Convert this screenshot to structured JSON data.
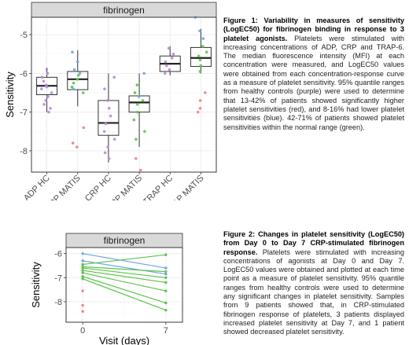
{
  "figure1": {
    "caption_title": "Figure 1: Variability in measures of sensitivity (LogEC50) for fibrinogen binding in response to 3 platelet agonists.",
    "caption_body": "Platelets were stimulated with increasing concentrations of ADP, CRP and TRAP-6. The median fluorescence intensity (MFI) at each concentration were measured, and LogEC50 values were obtained from each concentration-response curve as a measure of platelet sensitivity. 95% quantile ranges from healthy controls (purple) were used to determine that 13-42% of patients showed significantly higher platelet sensitivities (red), and 8-16% had lower platelet sensitivities (blue). 42-71% of patients showed platelet sensitivities within the normal range (green)."
  },
  "figure2": {
    "caption_title": "Figure 2: Changes in platelet sensitivity (LogEC50) from Day 0 to Day 7 CRP-stimulated fibrinogen response.",
    "caption_body": "Platelets were stimulated with increasing concentrations of agonists at Day 0 and Day 7. LogEC50 values were obtained and plotted at each time point as a measure of platelet sensitivity. 95% quantile ranges from healthy controls were used to determine any significant changes in platelet sensitivity. Samples from 9 patients showed that, in CRP-stimulated fibrinogen response of platelets, 3 patients displayed increased platelet sensitivity at Day 7, and 1 patient showed decreased platelet sensitivity."
  },
  "colors": {
    "hc_purple": "#b78ad8",
    "higher_red": "#f07f7f",
    "lower_blue": "#6fa8e0",
    "normal_green": "#5bc44a"
  },
  "chart_data": [
    {
      "type": "boxplot",
      "facet": "fibrinogen",
      "ylabel": "Sensitivity",
      "xlabel": "",
      "ylim": [
        -8.55,
        -4.55
      ],
      "yticks": [
        -8,
        -7,
        -6,
        -5
      ],
      "ytick_labels": [
        "-8",
        "-7",
        "-6",
        "-5"
      ],
      "categories": [
        "ADP HC",
        "ADP MATIS",
        "CRP HC",
        "CRP MATIS",
        "TRAP HC",
        "TRAP MATIS"
      ],
      "boxes": [
        {
          "q1": -6.55,
          "median": -6.32,
          "q3": -6.1,
          "lo": -7.0,
          "hi": -5.85
        },
        {
          "q1": -6.42,
          "median": -6.15,
          "q3": -5.95,
          "lo": -6.85,
          "hi": -5.4
        },
        {
          "q1": -7.6,
          "median": -7.28,
          "q3": -6.7,
          "lo": -8.3,
          "hi": -6.0
        },
        {
          "q1": -7.0,
          "median": -6.75,
          "q3": -6.58,
          "lo": -7.9,
          "hi": -6.0
        },
        {
          "q1": -5.95,
          "median": -5.75,
          "q3": -5.55,
          "lo": -6.05,
          "hi": -5.3
        },
        {
          "q1": -5.82,
          "median": -5.6,
          "q3": -5.33,
          "lo": -6.0,
          "hi": -4.85
        }
      ],
      "points": [
        {
          "cat": 0,
          "values": [
            -5.9,
            -6.0,
            -6.1,
            -6.2,
            -6.3,
            -6.35,
            -6.4,
            -6.5,
            -6.6,
            -6.7,
            -6.8,
            -6.9,
            -7.0
          ],
          "group": "hc"
        },
        {
          "cat": 1,
          "values": [
            -5.45,
            -5.7,
            -5.9,
            -6.0,
            -6.4
          ],
          "group": "lower"
        },
        {
          "cat": 1,
          "values": [
            -6.05,
            -6.15,
            -6.25,
            -6.35,
            -6.5
          ],
          "group": "normal"
        },
        {
          "cat": 1,
          "values": [
            -7.4,
            -7.8,
            -7.9
          ],
          "group": "higher"
        },
        {
          "cat": 2,
          "values": [
            -6.1,
            -6.4,
            -6.7,
            -6.9,
            -7.1,
            -7.3,
            -7.5,
            -7.7,
            -7.9,
            -8.05,
            -8.2
          ],
          "group": "hc"
        },
        {
          "cat": 3,
          "values": [
            -6.3,
            -6.5,
            -6.7,
            -6.8,
            -7.0,
            -7.2,
            -7.5,
            -7.7
          ],
          "group": "normal"
        },
        {
          "cat": 3,
          "values": [
            -6.0,
            -6.6
          ],
          "group": "lower"
        },
        {
          "cat": 3,
          "values": [
            -8.2,
            -8.5
          ],
          "group": "higher"
        },
        {
          "cat": 4,
          "values": [
            -5.35,
            -5.5,
            -5.6,
            -5.7,
            -5.8,
            -5.9,
            -6.0
          ],
          "group": "hc"
        },
        {
          "cat": 5,
          "values": [
            -4.55,
            -4.9,
            -5.1
          ],
          "group": "lower"
        },
        {
          "cat": 5,
          "values": [
            -5.3,
            -5.45,
            -5.55,
            -5.65,
            -5.8,
            -5.95
          ],
          "group": "normal"
        },
        {
          "cat": 5,
          "values": [
            -6.5,
            -6.7,
            -6.9,
            -7.0
          ],
          "group": "higher"
        }
      ]
    },
    {
      "type": "line",
      "facet": "fibrinogen",
      "ylabel": "Sensitivity",
      "xlabel": "Visit (days)",
      "xlim": [
        -1.4,
        8.4
      ],
      "xticks": [
        0,
        7
      ],
      "xtick_labels": [
        "0",
        "7"
      ],
      "ylim": [
        -8.85,
        -5.75
      ],
      "yticks": [
        -8,
        -7,
        -6
      ],
      "ytick_labels": [
        "-8",
        "-7",
        "-6"
      ],
      "series": [
        {
          "x": [
            0,
            7
          ],
          "y": [
            -6.0,
            -6.6
          ],
          "group": "lower"
        },
        {
          "x": [
            0,
            7
          ],
          "y": [
            -6.3,
            -6.85
          ],
          "group": "lower"
        },
        {
          "x": [
            0,
            7
          ],
          "y": [
            -6.45,
            -6.05
          ],
          "group": "normal"
        },
        {
          "x": [
            0,
            7
          ],
          "y": [
            -6.55,
            -6.75
          ],
          "group": "normal"
        },
        {
          "x": [
            0,
            7
          ],
          "y": [
            -6.6,
            -7.0
          ],
          "group": "normal"
        },
        {
          "x": [
            0,
            7
          ],
          "y": [
            -6.7,
            -7.2
          ],
          "group": "normal"
        },
        {
          "x": [
            0,
            7
          ],
          "y": [
            -6.8,
            -7.55
          ],
          "group": "normal"
        },
        {
          "x": [
            0,
            7
          ],
          "y": [
            -6.95,
            -8.05
          ],
          "group": "normal"
        },
        {
          "x": [
            0,
            7
          ],
          "y": [
            -7.05,
            -8.35
          ],
          "group": "normal"
        }
      ],
      "extra_points": [
        {
          "x": 0,
          "y": -7.55,
          "group": "higher"
        },
        {
          "x": 0,
          "y": -8.15,
          "group": "higher"
        },
        {
          "x": 0,
          "y": -8.4,
          "group": "higher"
        }
      ]
    }
  ]
}
